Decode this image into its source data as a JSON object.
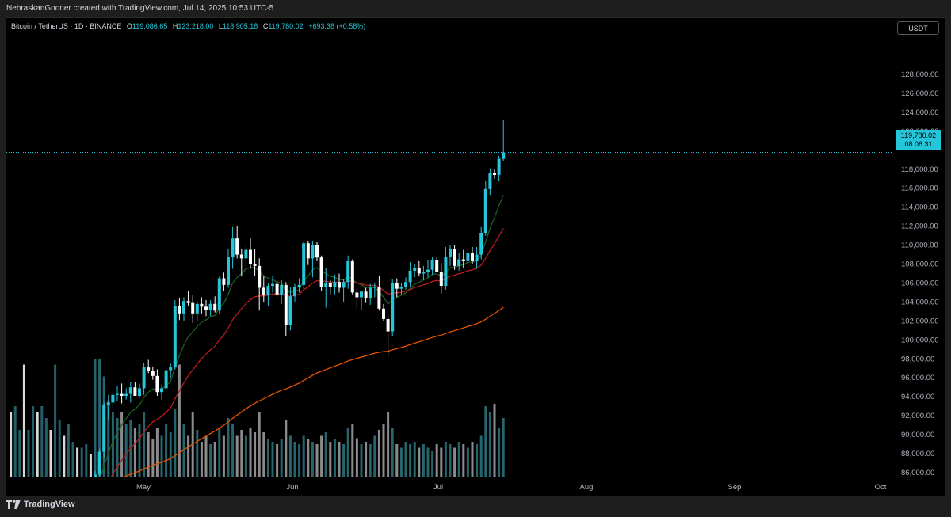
{
  "header": {
    "credit": "NebraskanGooner created with TradingView.com, Jul 14, 2025 10:53 UTC-5"
  },
  "legend": {
    "symbol": "Bitcoin / TetherUS · 1D · BINANCE",
    "o_label": "O",
    "o_value": "119,086.65",
    "h_label": "H",
    "h_value": "123,218.00",
    "l_label": "L",
    "l_value": "118,905.18",
    "c_label": "C",
    "c_value": "119,780.02",
    "change": "+693.38 (+0.58%)"
  },
  "currency": "USDT",
  "last_price": {
    "price": "119,780.02",
    "countdown": "08:06:31"
  },
  "branding": {
    "logo_text": "TradingView"
  },
  "colors": {
    "up_candle": "#26c6da",
    "down_candle": "#ffffff",
    "ema_short": "#1b5e20",
    "ema_mid": "#b71c1c",
    "ema_long": "#e65100",
    "price_line": "#26c6da"
  },
  "chart_data": {
    "type": "candlestick",
    "title": "",
    "xlabel": "",
    "ylabel": "",
    "ylim": [
      85500,
      130000
    ],
    "y_ticks": [
      "86,000.00",
      "88,000.00",
      "90,000.00",
      "92,000.00",
      "94,000.00",
      "96,000.00",
      "98,000.00",
      "100,000.00",
      "102,000.00",
      "104,000.00",
      "106,000.00",
      "108,000.00",
      "110,000.00",
      "112,000.00",
      "114,000.00",
      "116,000.00",
      "118,000.00",
      "120,000.00",
      "122,000.00",
      "124,000.00",
      "126,000.00",
      "128,000.00"
    ],
    "x_ticks": [
      "May",
      "Jun",
      "Jul",
      "Aug",
      "Sep",
      "Oct"
    ],
    "grid": false,
    "ohlc": [
      {
        "o": 83800,
        "h": 86200,
        "l": 83000,
        "c": 85800
      },
      {
        "o": 85800,
        "h": 88500,
        "l": 85000,
        "c": 88200
      },
      {
        "o": 88200,
        "h": 93400,
        "l": 87600,
        "c": 93100
      },
      {
        "o": 93100,
        "h": 94200,
        "l": 91600,
        "c": 93400
      },
      {
        "o": 93400,
        "h": 94600,
        "l": 92700,
        "c": 94200
      },
      {
        "o": 94200,
        "h": 95100,
        "l": 93600,
        "c": 94300
      },
      {
        "o": 94300,
        "h": 95400,
        "l": 93300,
        "c": 94100
      },
      {
        "o": 94100,
        "h": 94900,
        "l": 93700,
        "c": 94300
      },
      {
        "o": 94300,
        "h": 95600,
        "l": 93400,
        "c": 95000
      },
      {
        "o": 95000,
        "h": 95600,
        "l": 94100,
        "c": 94100
      },
      {
        "o": 94100,
        "h": 95400,
        "l": 93900,
        "c": 94900
      },
      {
        "o": 94900,
        "h": 97600,
        "l": 94200,
        "c": 97100
      },
      {
        "o": 97100,
        "h": 97900,
        "l": 96500,
        "c": 96700
      },
      {
        "o": 96700,
        "h": 97200,
        "l": 95800,
        "c": 96200
      },
      {
        "o": 96200,
        "h": 96900,
        "l": 94100,
        "c": 94500
      },
      {
        "o": 94500,
        "h": 95300,
        "l": 93700,
        "c": 94900
      },
      {
        "o": 94900,
        "h": 97100,
        "l": 94500,
        "c": 96800
      },
      {
        "o": 96800,
        "h": 97600,
        "l": 96000,
        "c": 97100
      },
      {
        "o": 97100,
        "h": 104200,
        "l": 96900,
        "c": 103600
      },
      {
        "o": 103600,
        "h": 104400,
        "l": 102100,
        "c": 102800
      },
      {
        "o": 102800,
        "h": 104500,
        "l": 102000,
        "c": 104100
      },
      {
        "o": 104100,
        "h": 105200,
        "l": 103600,
        "c": 103900
      },
      {
        "o": 103900,
        "h": 104700,
        "l": 101800,
        "c": 102800
      },
      {
        "o": 102800,
        "h": 104100,
        "l": 102000,
        "c": 103800
      },
      {
        "o": 103800,
        "h": 104500,
        "l": 102800,
        "c": 103500
      },
      {
        "o": 103500,
        "h": 104200,
        "l": 102500,
        "c": 103200
      },
      {
        "o": 103200,
        "h": 104200,
        "l": 102500,
        "c": 103800
      },
      {
        "o": 103800,
        "h": 104600,
        "l": 102900,
        "c": 103100
      },
      {
        "o": 103100,
        "h": 106700,
        "l": 102700,
        "c": 106500
      },
      {
        "o": 106500,
        "h": 107100,
        "l": 105200,
        "c": 105800
      },
      {
        "o": 105800,
        "h": 109600,
        "l": 105500,
        "c": 108700
      },
      {
        "o": 108700,
        "h": 111900,
        "l": 107500,
        "c": 110700
      },
      {
        "o": 110700,
        "h": 112000,
        "l": 108600,
        "c": 109000
      },
      {
        "o": 109000,
        "h": 109600,
        "l": 106700,
        "c": 108600
      },
      {
        "o": 108600,
        "h": 110000,
        "l": 107200,
        "c": 109500
      },
      {
        "o": 109500,
        "h": 110700,
        "l": 107500,
        "c": 108000
      },
      {
        "o": 108000,
        "h": 109600,
        "l": 106700,
        "c": 107800
      },
      {
        "o": 107800,
        "h": 108600,
        "l": 103100,
        "c": 105500
      },
      {
        "o": 105500,
        "h": 106800,
        "l": 104000,
        "c": 104700
      },
      {
        "o": 104700,
        "h": 106000,
        "l": 103600,
        "c": 105700
      },
      {
        "o": 105700,
        "h": 106800,
        "l": 105000,
        "c": 105900
      },
      {
        "o": 105900,
        "h": 106300,
        "l": 104500,
        "c": 104800
      },
      {
        "o": 104800,
        "h": 106300,
        "l": 103800,
        "c": 105800
      },
      {
        "o": 105800,
        "h": 106100,
        "l": 100400,
        "c": 101600
      },
      {
        "o": 101600,
        "h": 105600,
        "l": 101000,
        "c": 104600
      },
      {
        "o": 104600,
        "h": 105900,
        "l": 104000,
        "c": 105600
      },
      {
        "o": 105600,
        "h": 106500,
        "l": 105000,
        "c": 105800
      },
      {
        "o": 105800,
        "h": 110400,
        "l": 105400,
        "c": 110200
      },
      {
        "o": 110200,
        "h": 110400,
        "l": 107900,
        "c": 108600
      },
      {
        "o": 108600,
        "h": 110400,
        "l": 106600,
        "c": 110000
      },
      {
        "o": 110000,
        "h": 110300,
        "l": 108300,
        "c": 108700
      },
      {
        "o": 108700,
        "h": 108900,
        "l": 105200,
        "c": 105600
      },
      {
        "o": 105600,
        "h": 107600,
        "l": 103400,
        "c": 106000
      },
      {
        "o": 106000,
        "h": 106300,
        "l": 104700,
        "c": 105600
      },
      {
        "o": 105600,
        "h": 106900,
        "l": 104800,
        "c": 106100
      },
      {
        "o": 106100,
        "h": 107000,
        "l": 105000,
        "c": 105500
      },
      {
        "o": 105500,
        "h": 106400,
        "l": 104000,
        "c": 106100
      },
      {
        "o": 106100,
        "h": 108900,
        "l": 105400,
        "c": 108300
      },
      {
        "o": 108300,
        "h": 108500,
        "l": 104800,
        "c": 105000
      },
      {
        "o": 105000,
        "h": 105400,
        "l": 103400,
        "c": 104500
      },
      {
        "o": 104500,
        "h": 105000,
        "l": 103200,
        "c": 105100
      },
      {
        "o": 105100,
        "h": 105500,
        "l": 103900,
        "c": 104400
      },
      {
        "o": 104400,
        "h": 105900,
        "l": 103700,
        "c": 105500
      },
      {
        "o": 105500,
        "h": 106000,
        "l": 104500,
        "c": 105600
      },
      {
        "o": 105600,
        "h": 106800,
        "l": 103100,
        "c": 103300
      },
      {
        "o": 103300,
        "h": 103800,
        "l": 102000,
        "c": 102200
      },
      {
        "o": 102200,
        "h": 102600,
        "l": 98200,
        "c": 100900
      },
      {
        "o": 100900,
        "h": 106400,
        "l": 100400,
        "c": 106000
      },
      {
        "o": 106000,
        "h": 106500,
        "l": 104500,
        "c": 105400
      },
      {
        "o": 105400,
        "h": 106000,
        "l": 104800,
        "c": 105600
      },
      {
        "o": 105600,
        "h": 106600,
        "l": 105300,
        "c": 106100
      },
      {
        "o": 106100,
        "h": 108200,
        "l": 105600,
        "c": 107300
      },
      {
        "o": 107300,
        "h": 108000,
        "l": 106600,
        "c": 107600
      },
      {
        "o": 107600,
        "h": 108300,
        "l": 106700,
        "c": 107000
      },
      {
        "o": 107000,
        "h": 107800,
        "l": 106300,
        "c": 107200
      },
      {
        "o": 107200,
        "h": 108400,
        "l": 106600,
        "c": 107400
      },
      {
        "o": 107400,
        "h": 108800,
        "l": 106900,
        "c": 108400
      },
      {
        "o": 108400,
        "h": 108700,
        "l": 107200,
        "c": 107200
      },
      {
        "o": 107200,
        "h": 108100,
        "l": 104900,
        "c": 105700
      },
      {
        "o": 105700,
        "h": 109800,
        "l": 105300,
        "c": 108800
      },
      {
        "o": 108800,
        "h": 110000,
        "l": 107800,
        "c": 109600
      },
      {
        "o": 109600,
        "h": 110000,
        "l": 107400,
        "c": 107800
      },
      {
        "o": 107800,
        "h": 109200,
        "l": 107300,
        "c": 108500
      },
      {
        "o": 108500,
        "h": 109500,
        "l": 107600,
        "c": 108300
      },
      {
        "o": 108300,
        "h": 109500,
        "l": 107800,
        "c": 109200
      },
      {
        "o": 109200,
        "h": 109800,
        "l": 108000,
        "c": 108300
      },
      {
        "o": 108300,
        "h": 109800,
        "l": 107500,
        "c": 109000
      },
      {
        "o": 109000,
        "h": 111900,
        "l": 108500,
        "c": 111300
      },
      {
        "o": 111300,
        "h": 116800,
        "l": 111000,
        "c": 115900
      },
      {
        "o": 115900,
        "h": 118100,
        "l": 115300,
        "c": 117600
      },
      {
        "o": 117600,
        "h": 118000,
        "l": 117000,
        "c": 117400
      },
      {
        "o": 117400,
        "h": 119400,
        "l": 116800,
        "c": 119100
      },
      {
        "o": 119086.65,
        "h": 123218,
        "l": 118905.18,
        "c": 119780.02
      }
    ],
    "volume_rel": [
      1.0,
      1.0,
      0.85,
      0.65,
      0.55,
      0.5,
      0.55,
      0.45,
      0.48,
      0.42,
      0.45,
      0.55,
      0.38,
      0.32,
      0.42,
      0.35,
      0.45,
      0.38,
      0.58,
      0.95,
      0.45,
      0.35,
      0.55,
      0.4,
      0.3,
      0.35,
      0.28,
      0.3,
      0.42,
      0.35,
      0.5,
      0.45,
      0.35,
      0.4,
      0.35,
      0.42,
      0.38,
      0.55,
      0.38,
      0.32,
      0.3,
      0.28,
      0.32,
      0.48,
      0.35,
      0.3,
      0.28,
      0.35,
      0.32,
      0.3,
      0.28,
      0.35,
      0.38,
      0.3,
      0.32,
      0.3,
      0.28,
      0.42,
      0.45,
      0.33,
      0.28,
      0.3,
      0.28,
      0.35,
      0.4,
      0.45,
      0.55,
      0.42,
      0.28,
      0.25,
      0.3,
      0.28,
      0.3,
      0.25,
      0.28,
      0.25,
      0.22,
      0.28,
      0.25,
      0.3,
      0.28,
      0.25,
      0.3,
      0.28,
      0.25,
      0.3,
      0.28,
      0.35,
      0.6,
      0.55,
      0.62,
      0.42,
      0.5
    ],
    "ema_periods": [
      9,
      21,
      100
    ]
  }
}
